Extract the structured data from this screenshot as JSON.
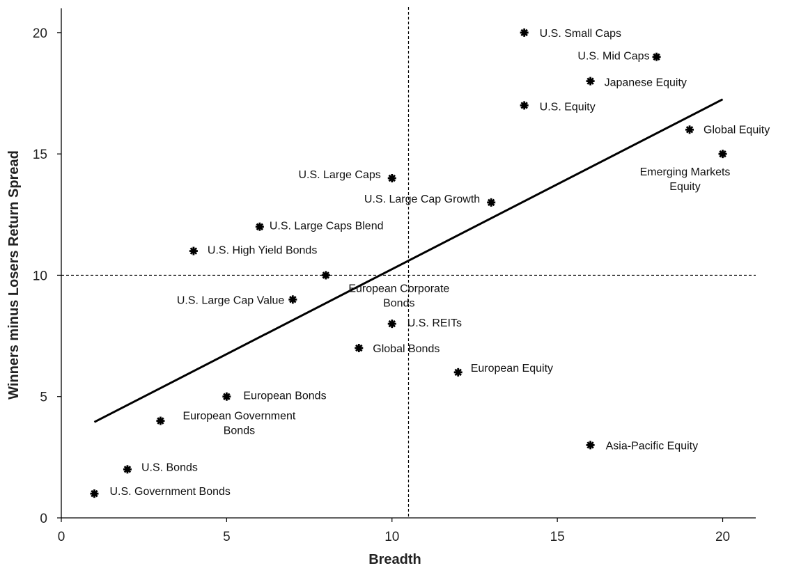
{
  "chart_data": {
    "type": "scatter",
    "xlabel": "Breadth",
    "ylabel": "Winners minus Losers Return Spread",
    "xlim": [
      0,
      21
    ],
    "ylim": [
      0,
      21
    ],
    "xticks": [
      0,
      5,
      10,
      15,
      20
    ],
    "yticks": [
      0,
      5,
      10,
      15,
      20
    ],
    "grid": false,
    "reference_lines": {
      "x": 10.5,
      "y": 10
    },
    "trendline": {
      "x": [
        1,
        20
      ],
      "y": [
        3.95,
        17.25
      ]
    },
    "points": [
      {
        "label": "U.S. Small Caps",
        "x": 14,
        "y": 20
      },
      {
        "label": "U.S. Mid Caps",
        "x": 18,
        "y": 19
      },
      {
        "label": "Japanese Equity",
        "x": 16,
        "y": 18
      },
      {
        "label": "U.S. Equity",
        "x": 14,
        "y": 17
      },
      {
        "label": "Global Equity",
        "x": 19,
        "y": 16
      },
      {
        "label": "Emerging Markets Equity",
        "x": 20,
        "y": 15
      },
      {
        "label": "U.S. Large Caps",
        "x": 10,
        "y": 14
      },
      {
        "label": "U.S. Large Cap Growth",
        "x": 13,
        "y": 13
      },
      {
        "label": "U.S. Large Caps Blend",
        "x": 6,
        "y": 12
      },
      {
        "label": "U.S. High Yield Bonds",
        "x": 4,
        "y": 11
      },
      {
        "label": "European Corporate Bonds",
        "x": 8,
        "y": 10
      },
      {
        "label": "U.S. Large Cap Value",
        "x": 7,
        "y": 9
      },
      {
        "label": "U.S. REITs",
        "x": 10,
        "y": 8
      },
      {
        "label": "Global Bonds",
        "x": 9,
        "y": 7
      },
      {
        "label": "European Equity",
        "x": 12,
        "y": 6
      },
      {
        "label": "European Bonds",
        "x": 5,
        "y": 5
      },
      {
        "label": "European Government Bonds",
        "x": 3,
        "y": 4
      },
      {
        "label": "Asia-Pacific Equity",
        "x": 16,
        "y": 3
      },
      {
        "label": "U.S. Bonds",
        "x": 2,
        "y": 2
      },
      {
        "label": "U.S. Government Bonds",
        "x": 1,
        "y": 1
      }
    ]
  }
}
